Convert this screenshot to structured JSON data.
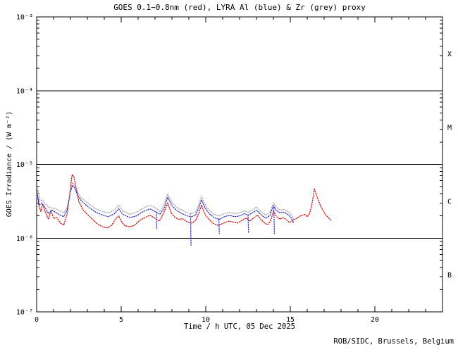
{
  "footer": {
    "credit": "ROB/SIDC, Brussels, Belgium"
  },
  "colors": {
    "axis": "#000000",
    "goes_red": "#dd0000",
    "lyra_al_blue": "#2222cc",
    "lyra_zr_grey": "#a2a2a2",
    "background": "#ffffff"
  },
  "chart_data": {
    "type": "line",
    "title": "GOES 0.1−0.8nm (red), LYRA Al (blue) & Zr (grey) proxy",
    "xlabel": "Time / h UTC, 05 Dec 2025",
    "ylabel": "GOES Irradiance / (W m⁻²)",
    "x_range": [
      0,
      24
    ],
    "x_major_ticks": [
      0,
      5,
      10,
      15,
      20
    ],
    "x_major_tick_labels": [
      "0",
      "5",
      "10",
      "15",
      "20"
    ],
    "x_minor_step": 1,
    "y_scale": "log",
    "y_range": [
      1e-07,
      0.001
    ],
    "y_tick_labels": [
      {
        "exp": -3,
        "label": "10⁻³"
      },
      {
        "exp": -4,
        "label": "10⁻⁴"
      },
      {
        "exp": -5,
        "label": "10⁻⁵"
      },
      {
        "exp": -6,
        "label": "10⁻⁶"
      },
      {
        "exp": -7,
        "label": "10⁻⁷"
      }
    ],
    "grid": "none",
    "legend_position": "in-title",
    "class_boundary_lines": [
      0.0001,
      1e-05,
      1e-06
    ],
    "flare_class_labels": [
      {
        "label": "X",
        "band_exponents": [
          -4,
          -3
        ]
      },
      {
        "label": "M",
        "band_exponents": [
          -5,
          -4
        ]
      },
      {
        "label": "C",
        "band_exponents": [
          -6,
          -5
        ]
      },
      {
        "label": "B",
        "band_exponents": [
          -7,
          -6
        ]
      }
    ],
    "series": [
      {
        "name": "GOES 0.1-0.8nm",
        "color_key": "goes_red",
        "color": "#dd0000",
        "points": [
          [
            0.0,
            3.4e-06
          ],
          [
            0.05,
            3.9e-06
          ],
          [
            0.15,
            2.6e-06
          ],
          [
            0.25,
            2.3e-06
          ],
          [
            0.35,
            2.9e-06
          ],
          [
            0.5,
            2.3e-06
          ],
          [
            0.7,
            1.8e-06
          ],
          [
            0.85,
            2.4e-06
          ],
          [
            1.0,
            1.85e-06
          ],
          [
            1.2,
            1.9e-06
          ],
          [
            1.4,
            1.6e-06
          ],
          [
            1.6,
            1.5e-06
          ],
          [
            1.8,
            2.1e-06
          ],
          [
            1.95,
            4e-06
          ],
          [
            2.1,
            7.3e-06
          ],
          [
            2.2,
            6.8e-06
          ],
          [
            2.35,
            4.6e-06
          ],
          [
            2.5,
            3.1e-06
          ],
          [
            2.75,
            2.4e-06
          ],
          [
            3.0,
            2.1e-06
          ],
          [
            3.3,
            1.8e-06
          ],
          [
            3.6,
            1.55e-06
          ],
          [
            3.9,
            1.42e-06
          ],
          [
            4.2,
            1.38e-06
          ],
          [
            4.45,
            1.5e-06
          ],
          [
            4.65,
            1.8e-06
          ],
          [
            4.85,
            2e-06
          ],
          [
            5.0,
            1.7e-06
          ],
          [
            5.2,
            1.48e-06
          ],
          [
            5.5,
            1.42e-06
          ],
          [
            5.8,
            1.5e-06
          ],
          [
            6.1,
            1.75e-06
          ],
          [
            6.4,
            1.9e-06
          ],
          [
            6.7,
            2.05e-06
          ],
          [
            7.0,
            1.85e-06
          ],
          [
            7.25,
            1.7e-06
          ],
          [
            7.5,
            2.15e-06
          ],
          [
            7.75,
            3e-06
          ],
          [
            7.95,
            2.2e-06
          ],
          [
            8.2,
            1.9e-06
          ],
          [
            8.45,
            1.78e-06
          ],
          [
            8.6,
            1.85e-06
          ],
          [
            8.8,
            1.72e-06
          ],
          [
            9.0,
            1.62e-06
          ],
          [
            9.2,
            1.6e-06
          ],
          [
            9.4,
            1.75e-06
          ],
          [
            9.6,
            2.2e-06
          ],
          [
            9.75,
            2.8e-06
          ],
          [
            9.95,
            2.1e-06
          ],
          [
            10.2,
            1.78e-06
          ],
          [
            10.45,
            1.58e-06
          ],
          [
            10.75,
            1.48e-06
          ],
          [
            11.05,
            1.6e-06
          ],
          [
            11.35,
            1.7e-06
          ],
          [
            11.65,
            1.65e-06
          ],
          [
            11.9,
            1.6e-06
          ],
          [
            12.15,
            1.75e-06
          ],
          [
            12.4,
            1.88e-06
          ],
          [
            12.6,
            1.7e-06
          ],
          [
            12.85,
            1.9e-06
          ],
          [
            13.05,
            2.05e-06
          ],
          [
            13.25,
            1.8e-06
          ],
          [
            13.45,
            1.62e-06
          ],
          [
            13.65,
            1.52e-06
          ],
          [
            13.82,
            1.7e-06
          ],
          [
            14.0,
            2.3e-06
          ],
          [
            14.2,
            1.95e-06
          ],
          [
            14.4,
            1.8e-06
          ],
          [
            14.55,
            1.9e-06
          ],
          [
            14.75,
            1.8e-06
          ],
          [
            14.95,
            1.62e-06
          ],
          [
            15.15,
            1.75e-06
          ],
          [
            15.35,
            1.85e-06
          ],
          [
            15.6,
            2e-06
          ],
          [
            15.85,
            2.1e-06
          ],
          [
            16.0,
            1.95e-06
          ],
          [
            16.15,
            2.2e-06
          ],
          [
            16.25,
            2.7e-06
          ],
          [
            16.32,
            3.3e-06
          ],
          [
            16.42,
            4.6e-06
          ],
          [
            16.52,
            4e-06
          ],
          [
            16.65,
            3.3e-06
          ],
          [
            16.8,
            2.7e-06
          ],
          [
            16.95,
            2.35e-06
          ],
          [
            17.1,
            2.05e-06
          ],
          [
            17.25,
            1.9e-06
          ],
          [
            17.4,
            1.75e-06
          ]
        ],
        "drops": []
      },
      {
        "name": "LYRA Al proxy",
        "color_key": "lyra_al_blue",
        "color": "#2222cc",
        "points": [
          [
            0.0,
            3.4e-06
          ],
          [
            0.05,
            3.8e-06
          ],
          [
            0.15,
            2.8e-06
          ],
          [
            0.3,
            3e-06
          ],
          [
            0.5,
            2.6e-06
          ],
          [
            0.7,
            2.15e-06
          ],
          [
            0.9,
            2.4e-06
          ],
          [
            1.1,
            2.25e-06
          ],
          [
            1.4,
            2.05e-06
          ],
          [
            1.6,
            1.95e-06
          ],
          [
            1.8,
            2.4e-06
          ],
          [
            2.0,
            4.2e-06
          ],
          [
            2.12,
            5.2e-06
          ],
          [
            2.25,
            4.8e-06
          ],
          [
            2.4,
            3.9e-06
          ],
          [
            2.6,
            3.3e-06
          ],
          [
            2.85,
            2.9e-06
          ],
          [
            3.1,
            2.6e-06
          ],
          [
            3.5,
            2.25e-06
          ],
          [
            3.9,
            2.05e-06
          ],
          [
            4.25,
            1.95e-06
          ],
          [
            4.6,
            2.15e-06
          ],
          [
            4.85,
            2.5e-06
          ],
          [
            5.1,
            2.1e-06
          ],
          [
            5.5,
            1.9e-06
          ],
          [
            5.9,
            2e-06
          ],
          [
            6.3,
            2.3e-06
          ],
          [
            6.7,
            2.5e-06
          ],
          [
            7.0,
            2.3e-06
          ],
          [
            7.3,
            2.1e-06
          ],
          [
            7.55,
            2.6e-06
          ],
          [
            7.75,
            3.6e-06
          ],
          [
            8.0,
            2.75e-06
          ],
          [
            8.3,
            2.35e-06
          ],
          [
            8.6,
            2.15e-06
          ],
          [
            8.9,
            2e-06
          ],
          [
            9.15,
            1.95e-06
          ],
          [
            9.4,
            2.05e-06
          ],
          [
            9.6,
            2.6e-06
          ],
          [
            9.75,
            3.3e-06
          ],
          [
            9.95,
            2.6e-06
          ],
          [
            10.2,
            2.15e-06
          ],
          [
            10.5,
            1.9e-06
          ],
          [
            10.8,
            1.8e-06
          ],
          [
            11.1,
            1.95e-06
          ],
          [
            11.4,
            2.05e-06
          ],
          [
            11.7,
            1.95e-06
          ],
          [
            12.0,
            2e-06
          ],
          [
            12.3,
            2.15e-06
          ],
          [
            12.5,
            2.05e-06
          ],
          [
            12.75,
            2.2e-06
          ],
          [
            13.0,
            2.4e-06
          ],
          [
            13.3,
            2.05e-06
          ],
          [
            13.55,
            1.85e-06
          ],
          [
            13.8,
            2.05e-06
          ],
          [
            14.0,
            2.75e-06
          ],
          [
            14.2,
            2.35e-06
          ],
          [
            14.4,
            2.2e-06
          ],
          [
            14.6,
            2.25e-06
          ],
          [
            14.8,
            2.15e-06
          ],
          [
            15.0,
            1.95e-06
          ],
          [
            15.1,
            1.8e-06
          ],
          [
            15.2,
            1.6e-06
          ]
        ],
        "drops": [
          [
            [
              7.08,
              2.25e-06
            ],
            [
              7.1,
              1.35e-06
            ]
          ],
          [
            [
              9.1,
              1.95e-06
            ],
            [
              9.13,
              8e-07
            ]
          ],
          [
            [
              10.78,
              1.8e-06
            ],
            [
              10.8,
              1.15e-06
            ]
          ],
          [
            [
              12.5,
              2.05e-06
            ],
            [
              12.53,
              1.2e-06
            ]
          ],
          [
            [
              14.03,
              2.6e-06
            ],
            [
              14.06,
              1.15e-06
            ]
          ]
        ]
      },
      {
        "name": "LYRA Zr proxy",
        "color_key": "lyra_zr_grey",
        "color": "#a2a2a2",
        "points": [
          [
            0.0,
            3.6e-06
          ],
          [
            0.07,
            4.6e-06
          ],
          [
            0.2,
            3.2e-06
          ],
          [
            0.35,
            3.3e-06
          ],
          [
            0.55,
            2.85e-06
          ],
          [
            0.75,
            2.6e-06
          ],
          [
            1.0,
            2.55e-06
          ],
          [
            1.3,
            2.4e-06
          ],
          [
            1.6,
            2.2e-06
          ],
          [
            1.8,
            2.6e-06
          ],
          [
            2.0,
            4.5e-06
          ],
          [
            2.12,
            5.7e-06
          ],
          [
            2.25,
            5.2e-06
          ],
          [
            2.4,
            4.3e-06
          ],
          [
            2.6,
            3.6e-06
          ],
          [
            2.85,
            3.2e-06
          ],
          [
            3.1,
            2.9e-06
          ],
          [
            3.5,
            2.5e-06
          ],
          [
            3.9,
            2.3e-06
          ],
          [
            4.25,
            2.2e-06
          ],
          [
            4.6,
            2.4e-06
          ],
          [
            4.85,
            2.8e-06
          ],
          [
            5.1,
            2.35e-06
          ],
          [
            5.5,
            2.1e-06
          ],
          [
            5.9,
            2.25e-06
          ],
          [
            6.3,
            2.55e-06
          ],
          [
            6.7,
            2.8e-06
          ],
          [
            7.0,
            2.6e-06
          ],
          [
            7.3,
            2.3e-06
          ],
          [
            7.55,
            2.9e-06
          ],
          [
            7.75,
            4e-06
          ],
          [
            8.0,
            3.05e-06
          ],
          [
            8.3,
            2.6e-06
          ],
          [
            8.6,
            2.4e-06
          ],
          [
            8.9,
            2.2e-06
          ],
          [
            9.15,
            2.15e-06
          ],
          [
            9.4,
            2.25e-06
          ],
          [
            9.6,
            2.9e-06
          ],
          [
            9.75,
            3.7e-06
          ],
          [
            9.95,
            2.9e-06
          ],
          [
            10.2,
            2.4e-06
          ],
          [
            10.5,
            2.1e-06
          ],
          [
            10.8,
            2e-06
          ],
          [
            11.1,
            2.15e-06
          ],
          [
            11.4,
            2.25e-06
          ],
          [
            11.7,
            2.15e-06
          ],
          [
            12.0,
            2.2e-06
          ],
          [
            12.3,
            2.35e-06
          ],
          [
            12.5,
            2.25e-06
          ],
          [
            12.75,
            2.4e-06
          ],
          [
            13.0,
            2.65e-06
          ],
          [
            13.3,
            2.25e-06
          ],
          [
            13.55,
            2.05e-06
          ],
          [
            13.8,
            2.25e-06
          ],
          [
            14.0,
            3e-06
          ],
          [
            14.2,
            2.6e-06
          ],
          [
            14.4,
            2.4e-06
          ],
          [
            14.6,
            2.45e-06
          ],
          [
            14.8,
            2.35e-06
          ],
          [
            15.0,
            2.15e-06
          ],
          [
            15.1,
            2e-06
          ],
          [
            15.2,
            1.8e-06
          ]
        ],
        "drops": [
          [
            [
              9.1,
              2.15e-06
            ],
            [
              9.13,
              1.3e-06
            ]
          ]
        ]
      }
    ]
  }
}
